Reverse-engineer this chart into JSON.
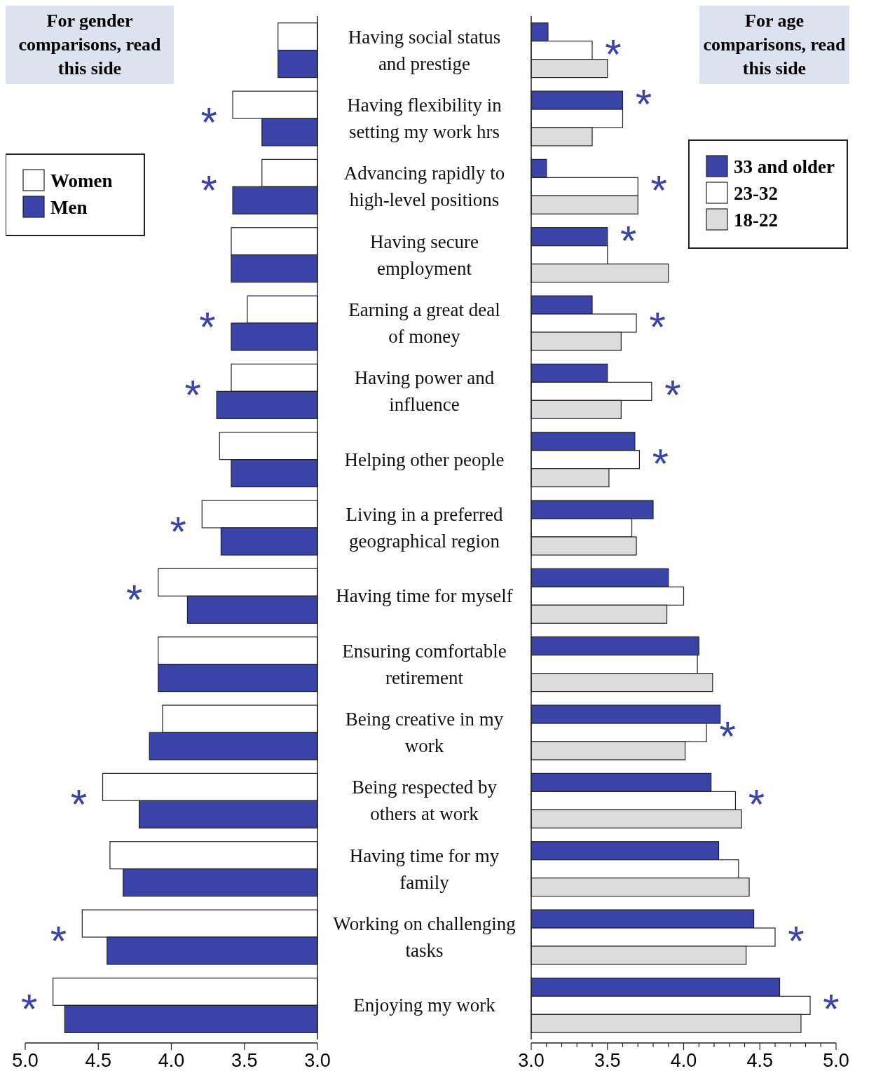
{
  "chart_data": [
    {
      "type": "bar",
      "orientation": "horizontal",
      "title": "For gender comparisons, read this side",
      "legend": "left",
      "categories": [
        "Having social status and prestige",
        "Having flexibility in setting my work hrs",
        "Advancing rapidly to high-level positions",
        "Having secure employment",
        "Earning a great deal of money",
        "Having power and influence",
        "Helping other people",
        "Living in a preferred geographical region",
        "Having time for myself",
        "Ensuring comfortable retirement",
        "Being creative in my work",
        "Being respected by others at work",
        "Having time for my family",
        "Working on challenging tasks",
        "Enjoying my work"
      ],
      "series": [
        {
          "name": "Women",
          "color": "#ffffff",
          "values": [
            3.27,
            3.58,
            3.38,
            3.59,
            3.48,
            3.59,
            3.67,
            3.79,
            4.09,
            4.09,
            4.06,
            4.47,
            4.42,
            4.61,
            4.81
          ]
        },
        {
          "name": "Men",
          "color": "#3a44a8",
          "values": [
            3.27,
            3.38,
            3.58,
            3.59,
            3.59,
            3.69,
            3.59,
            3.66,
            3.89,
            4.09,
            4.15,
            4.22,
            4.33,
            4.44,
            4.73
          ]
        }
      ],
      "xlim": [
        5,
        3
      ],
      "xticks": [
        {
          "value": 5,
          "label": "5.0"
        },
        {
          "value": 4.5,
          "label": "4.5"
        },
        {
          "value": 4,
          "label": "4.0"
        },
        {
          "value": 3.5,
          "label": "3.5"
        },
        {
          "value": 3,
          "label": "3.0"
        }
      ],
      "annotations": [
        {
          "text": "*",
          "x": 3.58,
          "y": "Having flexibility in setting my work hrs"
        },
        {
          "text": "*",
          "x": 3.58,
          "y": "Advancing rapidly to high-level positions"
        },
        {
          "text": "*",
          "x": 3.59,
          "y": "Earning a great deal of money"
        },
        {
          "text": "*",
          "x": 3.69,
          "y": "Having power and influence"
        },
        {
          "text": "*",
          "x": 3.79,
          "y": "Living in a preferred geographical region"
        },
        {
          "text": "*",
          "x": 4.09,
          "y": "Having time for myself"
        },
        {
          "text": "*",
          "x": 4.47,
          "y": "Being respected by others at work"
        },
        {
          "text": "*",
          "x": 4.61,
          "y": "Working on challenging tasks"
        },
        {
          "text": "*",
          "x": 4.81,
          "y": "Enjoying my work"
        }
      ]
    },
    {
      "type": "bar",
      "orientation": "horizontal",
      "title": "For age comparisons, read this side",
      "legend": "right",
      "tick_labels": "x",
      "categories": [
        "Having social status and prestige",
        "Having flexibility in setting my work hrs",
        "Advancing rapidly to high-level positions",
        "Having secure employment",
        "Earning a great deal of money",
        "Having power and influence",
        "Helping other people",
        "Living in a preferred geographical region",
        "Having time for myself",
        "Ensuring comfortable retirement",
        "Being creative in my work",
        "Being respected by others at work",
        "Having time for my family",
        "Working on challenging tasks",
        "Enjoying my work"
      ],
      "series": [
        {
          "name": "33 and older",
          "color": "#3a44a8",
          "values": [
            3.11,
            3.6,
            3.1,
            3.5,
            3.4,
            3.5,
            3.68,
            3.8,
            3.9,
            4.1,
            4.24,
            4.18,
            4.23,
            4.46,
            4.63
          ]
        },
        {
          "name": "23-32",
          "color": "#ffffff",
          "values": [
            3.4,
            3.6,
            3.7,
            3.5,
            3.69,
            3.79,
            3.71,
            3.66,
            4.0,
            4.09,
            4.15,
            4.34,
            4.36,
            4.6,
            4.83
          ]
        },
        {
          "name": "18-22",
          "color": "#dcdcdc",
          "values": [
            3.5,
            3.4,
            3.7,
            3.9,
            3.59,
            3.59,
            3.51,
            3.69,
            3.89,
            4.19,
            4.01,
            4.38,
            4.43,
            4.41,
            4.77
          ]
        }
      ],
      "xlim": [
        3,
        5
      ],
      "xticks": [
        {
          "value": 3,
          "label": "3.0"
        },
        {
          "value": 3.1,
          "label": null
        },
        {
          "value": 3.2,
          "label": null
        },
        {
          "value": 3.3,
          "label": null
        },
        {
          "value": 3.4,
          "label": null
        },
        {
          "value": 3.5,
          "label": "3.5"
        },
        {
          "value": 3.6,
          "label": null
        },
        {
          "value": 3.7,
          "label": null
        },
        {
          "value": 3.8,
          "label": null
        },
        {
          "value": 3.9,
          "label": null
        },
        {
          "value": 4,
          "label": "4.0"
        },
        {
          "value": 4.1,
          "label": null
        },
        {
          "value": 4.2,
          "label": null
        },
        {
          "value": 4.3,
          "label": null
        },
        {
          "value": 4.4,
          "label": null
        },
        {
          "value": 4.5,
          "label": "4.5"
        },
        {
          "value": 4.6,
          "label": null
        },
        {
          "value": 4.7,
          "label": null
        },
        {
          "value": 4.8,
          "label": null
        },
        {
          "value": 4.9,
          "label": null
        },
        {
          "value": 5,
          "label": "5.0"
        }
      ],
      "annotations": [
        {
          "text": "*",
          "x": 3.4,
          "y": "Having social status and prestige"
        },
        {
          "text": "*",
          "x": 3.6,
          "y": "Having flexibility in setting my work hrs"
        },
        {
          "text": "*",
          "x": 3.7,
          "y": "Advancing rapidly to high-level positions"
        },
        {
          "text": "*",
          "x": 3.5,
          "y": "Having secure employment"
        },
        {
          "text": "*",
          "x": 3.69,
          "y": "Earning a great deal of money"
        },
        {
          "text": "*",
          "x": 3.79,
          "y": "Having power and influence"
        },
        {
          "text": "*",
          "x": 3.71,
          "y": "Helping other people"
        },
        {
          "text": "*",
          "x": 4.15,
          "y": "Being creative in my work"
        },
        {
          "text": "*",
          "x": 4.34,
          "y": "Being respected by others at work"
        },
        {
          "text": "*",
          "x": 4.6,
          "y": "Working on challenging tasks"
        },
        {
          "text": "*",
          "x": 4.83,
          "y": "Enjoying my work"
        }
      ]
    }
  ]
}
